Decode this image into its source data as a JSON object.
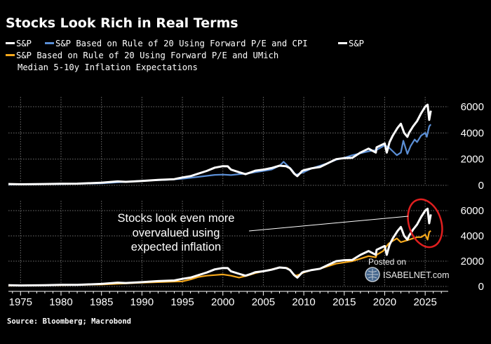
{
  "title": "Stocks Look Rich in Real Terms",
  "source": "Source: Bloomberg; Macrobond",
  "legend": [
    {
      "label": "S&P",
      "color": "#ffffff"
    },
    {
      "label": "S&P Based on Rule of 20 Using Forward P/E and CPI",
      "color": "#5b8fd6"
    },
    {
      "label": "S&P",
      "color": "#ffffff"
    },
    {
      "label": "S&P Based on Rule of 20 Using Forward P/E and UMich",
      "label2": "Median 5-10y Inflation Expectations",
      "color": "#f5a81c"
    }
  ],
  "annotation": {
    "lines": [
      "Stocks look even more",
      "overvalued using",
      "expected inflation"
    ]
  },
  "watermark": {
    "line1": "Posted on",
    "line2": "ISABELNET.com"
  },
  "colors": {
    "background": "#000000",
    "sp": "#ffffff",
    "cpi": "#5b8fd6",
    "umich": "#f5a81c",
    "circle": "#e01f1f",
    "grid": "#6e6e6e"
  },
  "chart_data": [
    {
      "type": "line",
      "panel": "top",
      "xlim": [
        1973.5,
        2027.5
      ],
      "ylim": [
        0,
        7000
      ],
      "grid": true,
      "xticks": [
        1975,
        1980,
        1985,
        1990,
        1995,
        2000,
        2005,
        2010,
        2015,
        2020,
        2025
      ],
      "yticks": [
        0,
        2000,
        4000,
        6000
      ],
      "series": [
        {
          "name": "S&P",
          "color": "#ffffff",
          "points": [
            [
              1973.5,
              100
            ],
            [
              1975,
              80
            ],
            [
              1978,
              100
            ],
            [
              1980,
              120
            ],
            [
              1982,
              130
            ],
            [
              1985,
              200
            ],
            [
              1987,
              300
            ],
            [
              1988,
              270
            ],
            [
              1990,
              340
            ],
            [
              1992,
              420
            ],
            [
              1994,
              470
            ],
            [
              1995,
              600
            ],
            [
              1996,
              700
            ],
            [
              1997,
              900
            ],
            [
              1998,
              1100
            ],
            [
              1999,
              1350
            ],
            [
              2000,
              1460
            ],
            [
              2000.6,
              1450
            ],
            [
              2001,
              1200
            ],
            [
              2002,
              1000
            ],
            [
              2002.8,
              850
            ],
            [
              2003.5,
              1000
            ],
            [
              2004,
              1120
            ],
            [
              2005,
              1200
            ],
            [
              2006,
              1320
            ],
            [
              2007,
              1500
            ],
            [
              2007.8,
              1460
            ],
            [
              2008.3,
              1300
            ],
            [
              2008.8,
              900
            ],
            [
              2009.2,
              700
            ],
            [
              2009.8,
              1100
            ],
            [
              2010,
              1150
            ],
            [
              2011,
              1300
            ],
            [
              2012,
              1400
            ],
            [
              2013,
              1700
            ],
            [
              2014,
              2000
            ],
            [
              2015,
              2080
            ],
            [
              2016,
              2100
            ],
            [
              2017,
              2500
            ],
            [
              2018,
              2800
            ],
            [
              2018.9,
              2500
            ],
            [
              2019,
              2900
            ],
            [
              2020,
              3200
            ],
            [
              2020.25,
              2500
            ],
            [
              2020.6,
              3300
            ],
            [
              2021,
              3800
            ],
            [
              2021.6,
              4400
            ],
            [
              2022,
              4700
            ],
            [
              2022.4,
              4000
            ],
            [
              2022.8,
              3700
            ],
            [
              2023,
              4000
            ],
            [
              2023.5,
              4500
            ],
            [
              2024,
              4900
            ],
            [
              2024.5,
              5500
            ],
            [
              2025,
              6000
            ],
            [
              2025.3,
              6150
            ],
            [
              2025.5,
              5000
            ],
            [
              2025.7,
              5700
            ]
          ]
        },
        {
          "name": "S&P Based on Rule of 20 Using Forward P/E and CPI",
          "color": "#5b8fd6",
          "points": [
            [
              1973.5,
              60
            ],
            [
              1980,
              100
            ],
            [
              1985,
              150
            ],
            [
              1990,
              350
            ],
            [
              1993,
              420
            ],
            [
              1995,
              500
            ],
            [
              1997,
              650
            ],
            [
              1999,
              800
            ],
            [
              2000,
              820
            ],
            [
              2001,
              780
            ],
            [
              2002,
              850
            ],
            [
              2003,
              900
            ],
            [
              2004,
              1000
            ],
            [
              2005,
              1100
            ],
            [
              2006,
              1200
            ],
            [
              2007,
              1500
            ],
            [
              2007.5,
              1800
            ],
            [
              2008,
              1500
            ],
            [
              2008.5,
              1200
            ],
            [
              2009,
              800
            ],
            [
              2009.5,
              900
            ],
            [
              2010,
              1000
            ],
            [
              2011,
              1300
            ],
            [
              2012,
              1500
            ],
            [
              2013,
              1700
            ],
            [
              2014,
              1950
            ],
            [
              2015,
              2100
            ],
            [
              2016,
              2300
            ],
            [
              2017,
              2450
            ],
            [
              2018,
              2600
            ],
            [
              2019,
              2700
            ],
            [
              2020,
              3050
            ],
            [
              2020.5,
              2900
            ],
            [
              2021,
              2600
            ],
            [
              2021.5,
              2300
            ],
            [
              2022,
              2500
            ],
            [
              2022.3,
              3400
            ],
            [
              2022.8,
              2400
            ],
            [
              2023.2,
              3000
            ],
            [
              2023.7,
              3500
            ],
            [
              2024,
              3300
            ],
            [
              2024.5,
              3800
            ],
            [
              2025,
              4000
            ],
            [
              2025.2,
              3700
            ],
            [
              2025.5,
              4500
            ],
            [
              2025.7,
              4650
            ]
          ]
        }
      ]
    },
    {
      "type": "line",
      "panel": "bottom",
      "xlim": [
        1973.5,
        2027.5
      ],
      "ylim": [
        0,
        7000
      ],
      "grid": true,
      "xticks": [
        1975,
        1980,
        1985,
        1990,
        1995,
        2000,
        2005,
        2010,
        2015,
        2020,
        2025
      ],
      "xticklabels": [
        "1975",
        "1980",
        "1985",
        "1990",
        "1995",
        "2000",
        "2005",
        "2010",
        "2015",
        "2020",
        "2025"
      ],
      "yticks": [
        0,
        2000,
        4000,
        6000
      ],
      "series": [
        {
          "name": "S&P",
          "color": "#ffffff",
          "points": [
            [
              1973.5,
              100
            ],
            [
              1975,
              80
            ],
            [
              1978,
              100
            ],
            [
              1980,
              120
            ],
            [
              1982,
              130
            ],
            [
              1985,
              200
            ],
            [
              1987,
              300
            ],
            [
              1988,
              270
            ],
            [
              1990,
              340
            ],
            [
              1992,
              420
            ],
            [
              1994,
              470
            ],
            [
              1995,
              600
            ],
            [
              1996,
              700
            ],
            [
              1997,
              900
            ],
            [
              1998,
              1100
            ],
            [
              1999,
              1350
            ],
            [
              2000,
              1460
            ],
            [
              2000.6,
              1450
            ],
            [
              2001,
              1200
            ],
            [
              2002,
              1000
            ],
            [
              2002.8,
              850
            ],
            [
              2003.5,
              1000
            ],
            [
              2004,
              1120
            ],
            [
              2005,
              1200
            ],
            [
              2006,
              1320
            ],
            [
              2007,
              1500
            ],
            [
              2007.8,
              1460
            ],
            [
              2008.3,
              1300
            ],
            [
              2008.8,
              900
            ],
            [
              2009.2,
              700
            ],
            [
              2009.8,
              1100
            ],
            [
              2010,
              1150
            ],
            [
              2011,
              1300
            ],
            [
              2012,
              1400
            ],
            [
              2013,
              1700
            ],
            [
              2014,
              2000
            ],
            [
              2015,
              2080
            ],
            [
              2016,
              2100
            ],
            [
              2017,
              2500
            ],
            [
              2018,
              2800
            ],
            [
              2018.9,
              2500
            ],
            [
              2019,
              2900
            ],
            [
              2020,
              3200
            ],
            [
              2020.25,
              2500
            ],
            [
              2020.6,
              3300
            ],
            [
              2021,
              3800
            ],
            [
              2021.6,
              4400
            ],
            [
              2022,
              4700
            ],
            [
              2022.4,
              4000
            ],
            [
              2022.8,
              3700
            ],
            [
              2023,
              4000
            ],
            [
              2023.5,
              4500
            ],
            [
              2024,
              4900
            ],
            [
              2024.5,
              5500
            ],
            [
              2025,
              6000
            ],
            [
              2025.3,
              6150
            ],
            [
              2025.5,
              5000
            ],
            [
              2025.7,
              5700
            ]
          ]
        },
        {
          "name": "S&P Based on Rule of 20 Using Forward P/E and UMich Median 5-10y Inflation Expectations",
          "color": "#f5a81c",
          "points": [
            [
              1973.5,
              60
            ],
            [
              1980,
              100
            ],
            [
              1985,
              150
            ],
            [
              1990,
              300
            ],
            [
              1995,
              400
            ],
            [
              1996,
              550
            ],
            [
              1997,
              750
            ],
            [
              1998,
              850
            ],
            [
              1999,
              900
            ],
            [
              2000,
              950
            ],
            [
              2001,
              850
            ],
            [
              2002,
              700
            ],
            [
              2003,
              850
            ],
            [
              2004,
              1050
            ],
            [
              2005,
              1200
            ],
            [
              2006,
              1350
            ],
            [
              2007,
              1500
            ],
            [
              2008,
              1450
            ],
            [
              2008.7,
              1000
            ],
            [
              2009,
              850
            ],
            [
              2009.5,
              950
            ],
            [
              2010,
              1100
            ],
            [
              2011,
              1300
            ],
            [
              2012,
              1400
            ],
            [
              2013,
              1600
            ],
            [
              2014,
              1800
            ],
            [
              2015,
              1900
            ],
            [
              2016,
              2000
            ],
            [
              2017,
              2200
            ],
            [
              2018,
              2400
            ],
            [
              2018.9,
              2300
            ],
            [
              2019,
              2500
            ],
            [
              2019.8,
              2800
            ],
            [
              2020,
              3000
            ],
            [
              2020.5,
              3400
            ],
            [
              2021,
              3600
            ],
            [
              2021.5,
              3800
            ],
            [
              2022,
              3500
            ],
            [
              2022.5,
              3600
            ],
            [
              2023,
              3700
            ],
            [
              2023.5,
              3800
            ],
            [
              2024,
              3900
            ],
            [
              2024.5,
              3900
            ],
            [
              2025,
              4100
            ],
            [
              2025.3,
              3700
            ],
            [
              2025.5,
              4300
            ],
            [
              2025.7,
              4400
            ]
          ]
        }
      ]
    }
  ]
}
